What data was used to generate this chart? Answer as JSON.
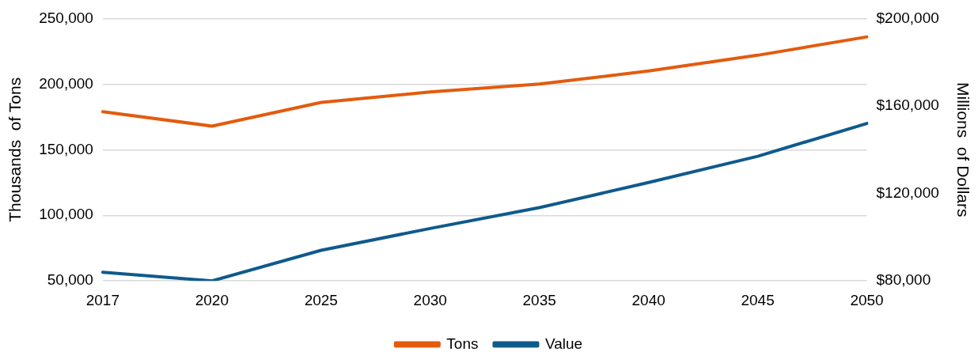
{
  "chart_data": {
    "type": "line",
    "ylabel": "Thousands  of Tons",
    "y2label": "Millions  of Dollars",
    "categories": [
      "2017",
      "2020",
      "2025",
      "2030",
      "2035",
      "2040",
      "2045",
      "2050"
    ],
    "series": [
      {
        "name": "Tons",
        "color": "#e35b0e",
        "values": [
          179000,
          168000,
          186000,
          194000,
          200000,
          210000,
          222000,
          236000
        ]
      },
      {
        "name": "Value",
        "color": "#0f5a8c",
        "axis": "y2",
        "values": [
          84000,
          80000,
          94000,
          104000,
          113500,
          125000,
          137000,
          152000
        ]
      }
    ],
    "ylim": [
      50000,
      250000
    ],
    "yticks": [
      {
        "value": 50000,
        "label": "50,000"
      },
      {
        "value": 100000,
        "label": "100,000"
      },
      {
        "value": 150000,
        "label": "150,000"
      },
      {
        "value": 200000,
        "label": "200,000"
      },
      {
        "value": 250000,
        "label": "250,000"
      }
    ],
    "y2lim": [
      80000,
      200000
    ],
    "y2ticks": [
      {
        "value": 80000,
        "label": "$80,000"
      },
      {
        "value": 120000,
        "label": "$120,000"
      },
      {
        "value": 160000,
        "label": "$160,000"
      },
      {
        "value": 200000,
        "label": "$200,000"
      }
    ],
    "grid": "y",
    "legend": "bottom",
    "marker": "none",
    "line_style": "solid"
  }
}
